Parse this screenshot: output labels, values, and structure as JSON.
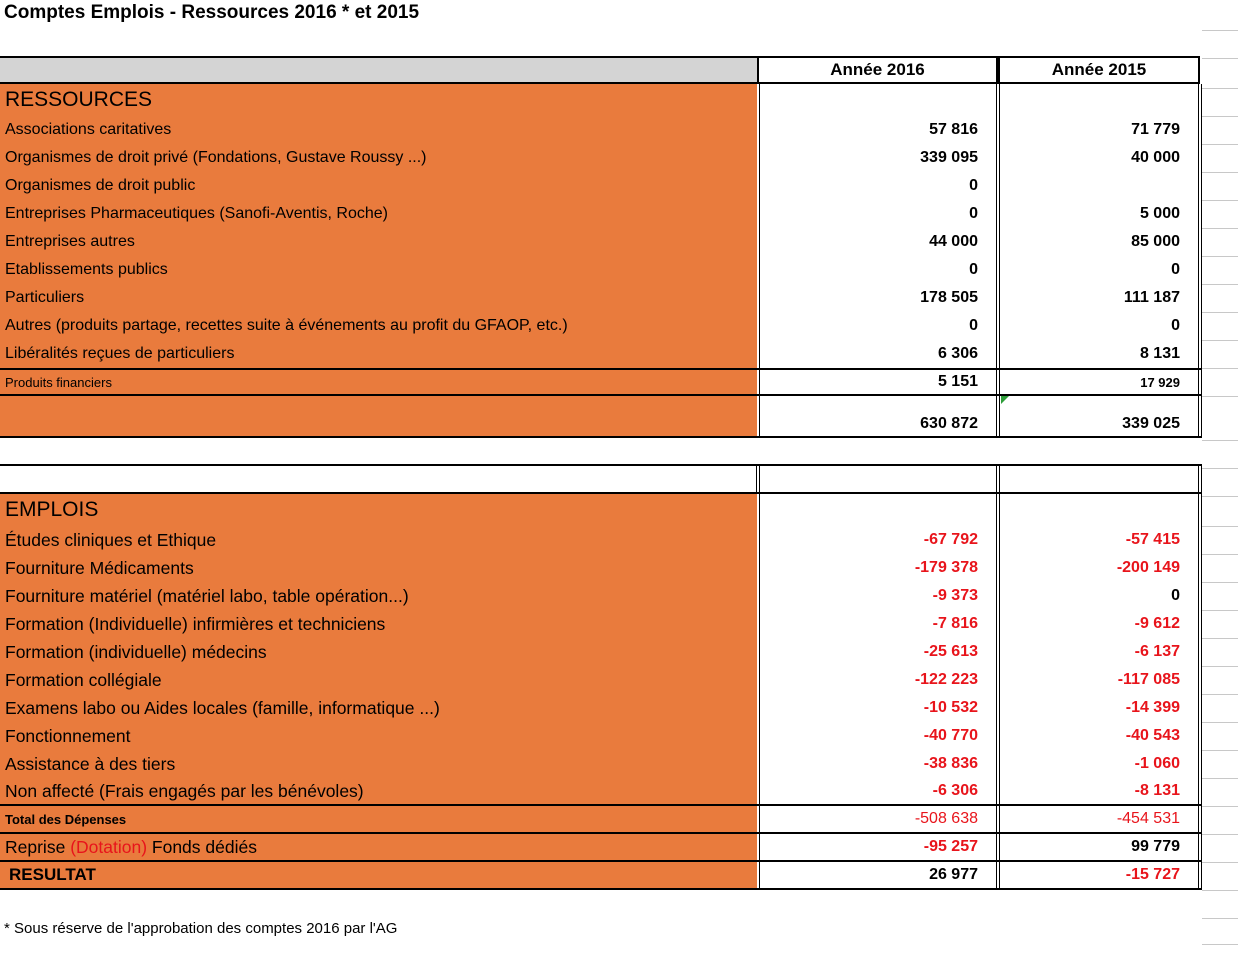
{
  "title": "Comptes Emplois - Ressources 2016 * et 2015",
  "columns": {
    "y2016": "Année 2016",
    "y2015": "Année 2015"
  },
  "ressources": {
    "heading": "RESSOURCES",
    "rows": [
      {
        "label": "Associations caritatives",
        "v2016": "57 816",
        "v2015": "71 779"
      },
      {
        "label": "Organismes de droit privé (Fondations, Gustave Roussy ...)",
        "v2016": "339 095",
        "v2015": "40 000"
      },
      {
        "label": "Organismes de droit public",
        "v2016": "0",
        "v2015": ""
      },
      {
        "label": "Entreprises Pharmaceutiques (Sanofi-Aventis, Roche)",
        "v2016": "0",
        "v2015": "5 000"
      },
      {
        "label": "Entreprises autres",
        "v2016": "44 000",
        "v2015": "85 000"
      },
      {
        "label": "Etablissements publics",
        "v2016": "0",
        "v2015": "0"
      },
      {
        "label": "Particuliers",
        "v2016": "178 505",
        "v2015": "111 187"
      },
      {
        "label": "Autres (produits partage, recettes suite à événements au profit du GFAOP, etc.)",
        "v2016": "0",
        "v2015": "0"
      },
      {
        "label": "Libéralités reçues de particuliers",
        "v2016": "6 306",
        "v2015": "8 131"
      }
    ],
    "financial": {
      "label": "Produits financiers",
      "v2016": "5 151",
      "v2015": "17 929"
    },
    "total": {
      "v2016": "630 872",
      "v2015": "339 025"
    }
  },
  "emplois": {
    "heading": "EMPLOIS",
    "rows": [
      {
        "label": "Études cliniques et Ethique",
        "v2016": "-67 792",
        "v2015": "-57 415"
      },
      {
        "label": "Fourniture Médicaments",
        "v2016": "-179 378",
        "v2015": "-200 149"
      },
      {
        "label": "Fourniture matériel (matériel labo, table opération...)",
        "v2016": "-9 373",
        "v2015": "0"
      },
      {
        "label": "Formation (Individuelle) infirmières et techniciens",
        "v2016": "-7 816",
        "v2015": "-9 612"
      },
      {
        "label": "Formation (individuelle) médecins",
        "v2016": "-25 613",
        "v2015": "-6 137"
      },
      {
        "label": "Formation collégiale",
        "v2016": "-122 223",
        "v2015": "-117 085"
      },
      {
        "label": "Examens labo ou Aides locales (famille, informatique ...)",
        "v2016": "-10 532",
        "v2015": "-14 399"
      },
      {
        "label": "Fonctionnement",
        "v2016": "-40 770",
        "v2015": "-40 543"
      },
      {
        "label": "Assistance à des tiers",
        "v2016": "-38 836",
        "v2015": "-1 060"
      },
      {
        "label": "Non affecté (Frais engagés par les bénévoles)",
        "v2016": "-6 306",
        "v2015": "-8 131"
      }
    ],
    "total_depenses": {
      "label": "Total des Dépenses",
      "v2016": "-508 638",
      "v2015": "-454 531"
    },
    "reprise": {
      "label_a": "Reprise",
      "label_b": "(Dotation)",
      "label_c": "Fonds dédiés",
      "v2016": "-95 257",
      "v2015": "99 779"
    },
    "resultat": {
      "label": "RESULTAT",
      "v2016": "26 977",
      "v2015": "-15 727"
    }
  },
  "footnote": "* Sous réserve de l'approbation des comptes 2016 par l'AG"
}
